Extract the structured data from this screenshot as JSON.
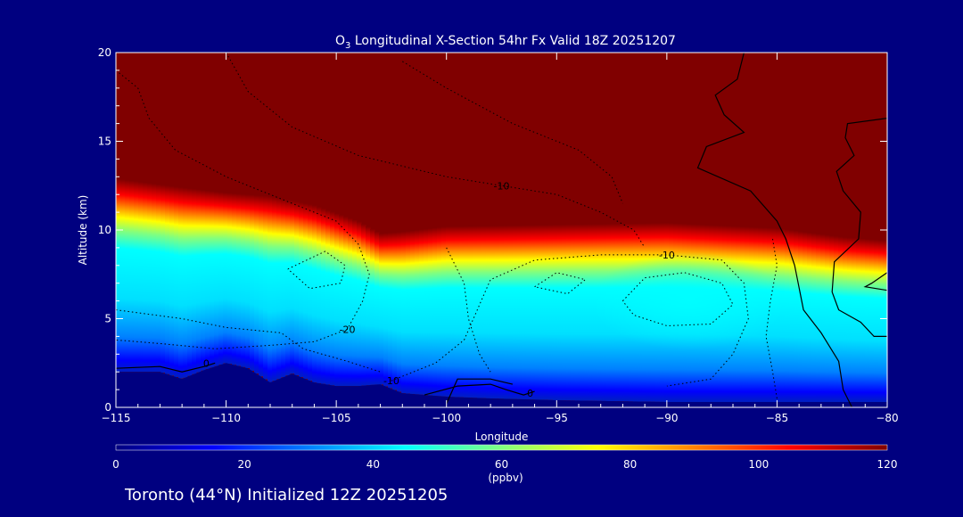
{
  "chart_data": {
    "type": "heatmap",
    "title": {
      "species": "O",
      "species_sub": "3",
      "rest": " Longitudinal X-Section 54hr  Fx Valid 18Z 20251207"
    },
    "xlabel": "Longitude",
    "ylabel": "Altitude (km)",
    "xlim": [
      -115,
      -80
    ],
    "ylim": [
      0,
      20
    ],
    "x_ticks": [
      -115,
      -110,
      -105,
      -100,
      -95,
      -90,
      -85,
      -80
    ],
    "x_tick_labels": [
      "−115",
      "−110",
      "−105",
      "−100",
      "−95",
      "−90",
      "−85",
      "−80"
    ],
    "y_ticks": [
      0,
      5,
      10,
      15,
      20
    ],
    "y_tick_labels": [
      "0",
      "5",
      "10",
      "15",
      "20"
    ],
    "colorbar": {
      "label": "(ppbv)",
      "min": 0,
      "max": 120,
      "ticks": [
        0,
        20,
        40,
        60,
        80,
        100,
        120
      ],
      "tick_labels": [
        "0",
        "20",
        "40",
        "60",
        "80",
        "100",
        "120"
      ],
      "colors": [
        "#000080",
        "#0000ff",
        "#0080ff",
        "#00ffff",
        "#80ff80",
        "#ffff00",
        "#ff8000",
        "#ff0000",
        "#800000"
      ]
    },
    "field": {
      "tropopause_altitude_km": [
        [
          -115,
          12.3
        ],
        [
          -112,
          11.8
        ],
        [
          -110,
          11.5
        ],
        [
          -108,
          11.3
        ],
        [
          -106,
          10.8
        ],
        [
          -104,
          9.9
        ],
        [
          -103,
          9.2
        ],
        [
          -102,
          9.3
        ],
        [
          -100,
          9.6
        ],
        [
          -95,
          9.7
        ],
        [
          -90,
          9.8
        ],
        [
          -85,
          9.5
        ],
        [
          -82,
          9.0
        ],
        [
          -80,
          8.8
        ]
      ],
      "terrain_altitude_km": [
        [
          -115,
          2.0
        ],
        [
          -113,
          2.0
        ],
        [
          -112,
          1.6
        ],
        [
          -111,
          2.1
        ],
        [
          -110,
          2.5
        ],
        [
          -109,
          2.2
        ],
        [
          -108,
          1.4
        ],
        [
          -107,
          1.9
        ],
        [
          -106,
          1.4
        ],
        [
          -105,
          1.2
        ],
        [
          -104,
          1.2
        ],
        [
          -103,
          1.3
        ],
        [
          -102,
          0.8
        ],
        [
          -100,
          0.6
        ],
        [
          -98,
          0.5
        ],
        [
          -95,
          0.4
        ],
        [
          -90,
          0.3
        ],
        [
          -85,
          0.3
        ],
        [
          -80,
          0.3
        ]
      ],
      "low_ozone_core": {
        "lon": -89,
        "alt_km": 6,
        "value_ppbv": 45
      }
    },
    "contour_labels": [
      {
        "text": "-10",
        "x": -97.5,
        "y": 12.5
      },
      {
        "text": "-10",
        "x": -90.0,
        "y": 8.6
      },
      {
        "text": "-20",
        "x": -104.5,
        "y": 4.4
      },
      {
        "text": "-10",
        "x": -102.5,
        "y": 1.5
      },
      {
        "text": "0",
        "x": -110.9,
        "y": 2.5
      },
      {
        "text": "0",
        "x": -96.2,
        "y": 0.8
      }
    ],
    "annotation": "Toronto (44°N) Initialized 12Z 20251205"
  }
}
